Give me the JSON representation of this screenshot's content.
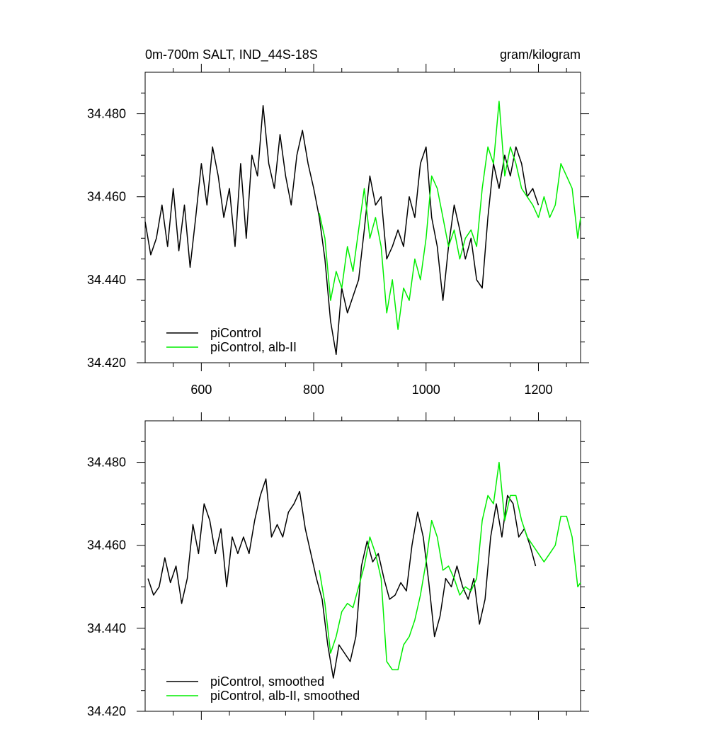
{
  "chart_data": [
    {
      "type": "line",
      "title_left": "0m-700m SALT, IND_44S-18S",
      "title_right": "gram/kilogram",
      "xlim": [
        500,
        1275
      ],
      "ylim": [
        34.42,
        34.49
      ],
      "xticks": [
        600,
        800,
        1000,
        1200
      ],
      "xtick_labels": [
        "600",
        "800",
        "1000",
        "1200"
      ],
      "yticks": [
        34.42,
        34.44,
        34.46,
        34.48
      ],
      "ytick_labels": [
        "34.420",
        "34.440",
        "34.460",
        "34.480"
      ],
      "legend_position": "bottom-left",
      "series": [
        {
          "name": "piControl",
          "color": "#000000",
          "x": [
            500,
            510,
            520,
            530,
            540,
            550,
            560,
            570,
            580,
            590,
            600,
            610,
            620,
            630,
            640,
            650,
            660,
            670,
            680,
            690,
            700,
            710,
            720,
            730,
            740,
            750,
            760,
            770,
            780,
            790,
            800,
            810,
            820,
            830,
            840,
            850,
            860,
            870,
            880,
            890,
            900,
            910,
            920,
            930,
            940,
            950,
            960,
            970,
            980,
            990,
            1000,
            1010,
            1020,
            1030,
            1040,
            1050,
            1060,
            1070,
            1080,
            1090,
            1100,
            1110,
            1120,
            1130,
            1140,
            1150,
            1160,
            1170,
            1180,
            1190,
            1200
          ],
          "y": [
            34.454,
            34.446,
            34.45,
            34.458,
            34.448,
            34.462,
            34.447,
            34.458,
            34.443,
            34.455,
            34.468,
            34.458,
            34.472,
            34.465,
            34.455,
            34.462,
            34.448,
            34.468,
            34.45,
            34.47,
            34.465,
            34.482,
            34.468,
            34.462,
            34.475,
            34.465,
            34.458,
            34.47,
            34.476,
            34.468,
            34.462,
            34.455,
            34.445,
            34.43,
            34.422,
            34.438,
            34.432,
            34.436,
            34.44,
            34.452,
            34.465,
            34.458,
            34.46,
            34.445,
            34.448,
            34.452,
            34.448,
            34.46,
            34.455,
            34.468,
            34.472,
            34.455,
            34.448,
            34.435,
            34.448,
            34.458,
            34.452,
            34.445,
            34.45,
            34.44,
            34.438,
            34.455,
            34.468,
            34.462,
            34.47,
            34.465,
            34.472,
            34.468,
            34.46,
            34.462,
            34.458
          ]
        },
        {
          "name": "piControl, alb-II",
          "color": "#00ee00",
          "x": [
            810,
            820,
            830,
            840,
            850,
            860,
            870,
            880,
            890,
            900,
            910,
            920,
            930,
            940,
            950,
            960,
            970,
            980,
            990,
            1000,
            1010,
            1020,
            1030,
            1040,
            1050,
            1060,
            1070,
            1080,
            1090,
            1100,
            1110,
            1120,
            1130,
            1140,
            1150,
            1160,
            1170,
            1180,
            1190,
            1200,
            1210,
            1220,
            1230,
            1240,
            1250,
            1260,
            1270,
            1275
          ],
          "y": [
            34.456,
            34.45,
            34.435,
            34.442,
            34.438,
            34.448,
            34.442,
            34.452,
            34.462,
            34.45,
            34.455,
            34.448,
            34.432,
            34.44,
            34.428,
            34.438,
            34.435,
            34.445,
            34.44,
            34.45,
            34.465,
            34.462,
            34.455,
            34.448,
            34.452,
            34.445,
            34.45,
            34.452,
            34.448,
            34.462,
            34.472,
            34.468,
            34.483,
            34.465,
            34.472,
            34.468,
            34.462,
            34.46,
            34.458,
            34.455,
            34.46,
            34.455,
            34.458,
            34.468,
            34.465,
            34.462,
            34.45,
            34.455
          ]
        }
      ],
      "legend": [
        {
          "label": "piControl",
          "color": "#000000"
        },
        {
          "label": "piControl, alb-II",
          "color": "#00ee00"
        }
      ]
    },
    {
      "type": "line",
      "xlim": [
        500,
        1275
      ],
      "ylim": [
        34.42,
        34.49
      ],
      "yticks": [
        34.42,
        34.44,
        34.46,
        34.48
      ],
      "ytick_labels": [
        "34.420",
        "34.440",
        "34.460",
        "34.480"
      ],
      "legend_position": "bottom-left",
      "series": [
        {
          "name": "piControl, smoothed",
          "color": "#000000",
          "x": [
            505,
            515,
            525,
            535,
            545,
            555,
            565,
            575,
            585,
            595,
            605,
            615,
            625,
            635,
            645,
            655,
            665,
            675,
            685,
            695,
            705,
            715,
            725,
            735,
            745,
            755,
            765,
            775,
            785,
            795,
            805,
            815,
            825,
            835,
            845,
            855,
            865,
            875,
            885,
            895,
            905,
            915,
            925,
            935,
            945,
            955,
            965,
            975,
            985,
            995,
            1005,
            1015,
            1025,
            1035,
            1045,
            1055,
            1065,
            1075,
            1085,
            1095,
            1105,
            1115,
            1125,
            1135,
            1145,
            1155,
            1165,
            1175,
            1185,
            1195
          ],
          "y": [
            34.452,
            34.448,
            34.45,
            34.457,
            34.451,
            34.455,
            34.446,
            34.452,
            34.465,
            34.458,
            34.47,
            34.466,
            34.458,
            34.464,
            34.45,
            34.462,
            34.458,
            34.462,
            34.458,
            34.466,
            34.472,
            34.476,
            34.462,
            34.465,
            34.462,
            34.468,
            34.47,
            34.473,
            34.464,
            34.458,
            34.452,
            34.447,
            34.436,
            34.428,
            34.436,
            34.434,
            34.432,
            34.438,
            34.455,
            34.461,
            34.456,
            34.458,
            34.452,
            34.447,
            34.448,
            34.451,
            34.449,
            34.46,
            34.468,
            34.462,
            34.451,
            34.438,
            34.443,
            34.452,
            34.45,
            34.455,
            34.45,
            34.447,
            34.452,
            34.441,
            34.447,
            34.462,
            34.47,
            34.462,
            34.472,
            34.47,
            34.462,
            34.464,
            34.46,
            34.455
          ]
        },
        {
          "name": "piControl, alb-II, smoothed",
          "color": "#00ee00",
          "x": [
            810,
            820,
            830,
            840,
            850,
            860,
            870,
            880,
            890,
            900,
            910,
            920,
            930,
            940,
            950,
            960,
            970,
            980,
            990,
            1000,
            1010,
            1020,
            1030,
            1040,
            1050,
            1060,
            1070,
            1080,
            1090,
            1100,
            1110,
            1120,
            1130,
            1140,
            1150,
            1160,
            1170,
            1180,
            1190,
            1200,
            1210,
            1220,
            1230,
            1240,
            1250,
            1260,
            1270,
            1275
          ],
          "y": [
            34.454,
            34.446,
            34.434,
            34.438,
            34.444,
            34.446,
            34.445,
            34.45,
            34.455,
            34.462,
            34.458,
            34.452,
            34.432,
            34.43,
            34.43,
            34.436,
            34.438,
            34.442,
            34.448,
            34.456,
            34.466,
            34.462,
            34.454,
            34.455,
            34.452,
            34.448,
            34.45,
            34.449,
            34.452,
            34.466,
            34.472,
            34.47,
            34.48,
            34.466,
            34.472,
            34.472,
            34.466,
            34.462,
            34.46,
            34.458,
            34.456,
            34.458,
            34.46,
            34.467,
            34.467,
            34.462,
            34.45,
            34.451
          ]
        }
      ],
      "legend": [
        {
          "label": "piControl, smoothed",
          "color": "#000000"
        },
        {
          "label": "piControl, alb-II, smoothed",
          "color": "#00ee00"
        }
      ]
    }
  ]
}
